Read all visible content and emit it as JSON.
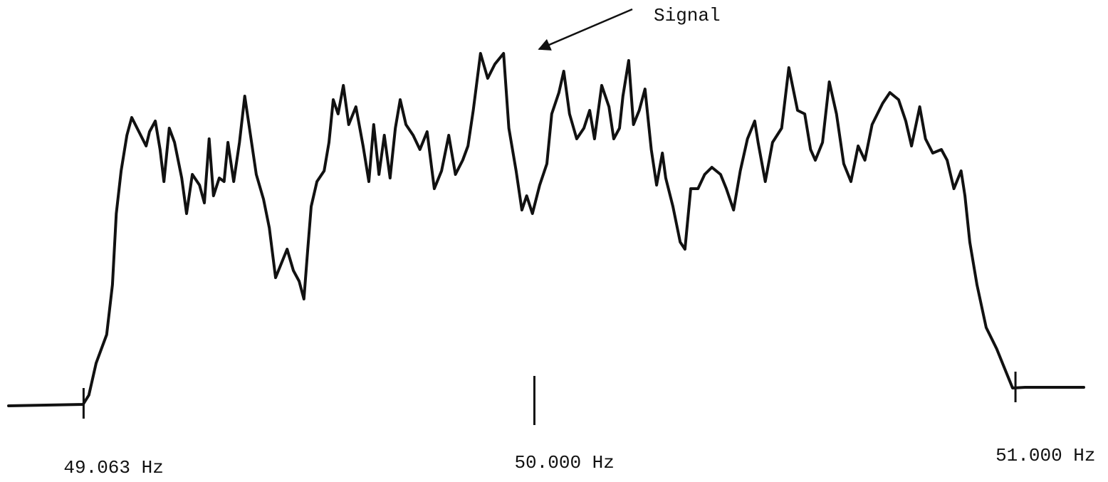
{
  "chart_data": {
    "type": "line",
    "annotation": "Signal",
    "xlim": [
      48.907,
      51.142
    ],
    "ylim": [
      0,
      100
    ],
    "xticks": [
      {
        "value": 49.063,
        "label": "49.063 Hz"
      },
      {
        "value": 50.0,
        "label": "50.000 Hz"
      },
      {
        "value": 51.0,
        "label": "51.000 Hz"
      }
    ],
    "series": [
      {
        "color": "#111111",
        "x": [
          48.907,
          49.062,
          49.074,
          49.089,
          49.111,
          49.123,
          49.131,
          49.141,
          49.153,
          49.163,
          49.178,
          49.193,
          49.2,
          49.212,
          49.222,
          49.23,
          49.241,
          49.252,
          49.267,
          49.277,
          49.289,
          49.304,
          49.314,
          49.324,
          49.333,
          49.345,
          49.355,
          49.363,
          49.375,
          49.387,
          49.398,
          49.41,
          49.422,
          49.437,
          49.449,
          49.462,
          49.474,
          49.486,
          49.499,
          49.511,
          49.521,
          49.529,
          49.536,
          49.548,
          49.563,
          49.573,
          49.582,
          49.592,
          49.603,
          49.614,
          49.629,
          49.644,
          49.656,
          49.666,
          49.677,
          49.688,
          49.7,
          49.711,
          49.721,
          49.733,
          49.748,
          49.762,
          49.777,
          49.792,
          49.807,
          49.822,
          49.836,
          49.851,
          49.862,
          49.873,
          49.888,
          49.903,
          49.918,
          49.936,
          49.947,
          49.962,
          49.974,
          49.984,
          49.996,
          50.011,
          50.026,
          50.036,
          50.051,
          50.061,
          50.073,
          50.088,
          50.103,
          50.115,
          50.125,
          50.14,
          50.155,
          50.165,
          50.177,
          50.184,
          50.196,
          50.206,
          50.218,
          50.23,
          50.243,
          50.254,
          50.266,
          50.273,
          50.288,
          50.303,
          50.313,
          50.325,
          50.34,
          50.354,
          50.369,
          50.387,
          50.399,
          50.414,
          50.428,
          50.443,
          50.458,
          50.465,
          50.48,
          50.495,
          50.514,
          50.529,
          50.547,
          50.562,
          50.574,
          50.584,
          50.599,
          50.613,
          50.628,
          50.643,
          50.658,
          50.673,
          50.687,
          50.702,
          50.724,
          50.739,
          50.757,
          50.772,
          50.784,
          50.801,
          50.813,
          50.828,
          50.846,
          50.858,
          50.872,
          50.887,
          50.895,
          50.905,
          50.92,
          50.939,
          50.961,
          50.976,
          50.994,
          51.02,
          51.142
        ],
        "values": [
          0,
          0.4,
          3,
          12,
          20,
          34,
          54,
          66,
          76,
          81,
          77,
          73,
          77,
          80,
          72,
          63,
          78,
          74,
          64,
          54,
          65,
          62,
          57,
          75,
          59,
          64,
          63,
          74,
          63,
          74,
          87,
          76,
          65,
          58,
          50,
          36,
          40,
          44,
          38,
          35,
          30,
          44,
          56,
          63,
          66,
          74,
          86,
          82,
          90,
          79,
          84,
          73,
          63,
          79,
          65,
          76,
          64,
          78,
          86,
          79,
          76,
          72,
          77,
          61,
          66,
          76,
          65,
          69,
          73,
          83,
          99,
          92,
          96,
          99,
          78,
          66,
          55,
          59,
          54,
          62,
          68,
          82,
          88,
          94,
          82,
          75,
          78,
          83,
          75,
          90,
          84,
          75,
          78,
          87,
          97,
          79,
          83,
          89,
          72,
          62,
          71,
          64,
          56,
          46,
          44,
          61,
          61,
          65,
          67,
          65,
          61,
          55,
          66,
          75,
          80,
          74,
          63,
          74,
          78,
          95,
          83,
          82,
          72,
          69,
          74,
          91,
          82,
          68,
          63,
          73,
          69,
          79,
          85,
          88,
          86,
          80,
          73,
          84,
          75,
          71,
          72,
          69,
          61,
          66,
          59,
          46,
          34,
          22,
          16,
          11,
          5,
          5.2,
          5.2
        ]
      }
    ]
  }
}
